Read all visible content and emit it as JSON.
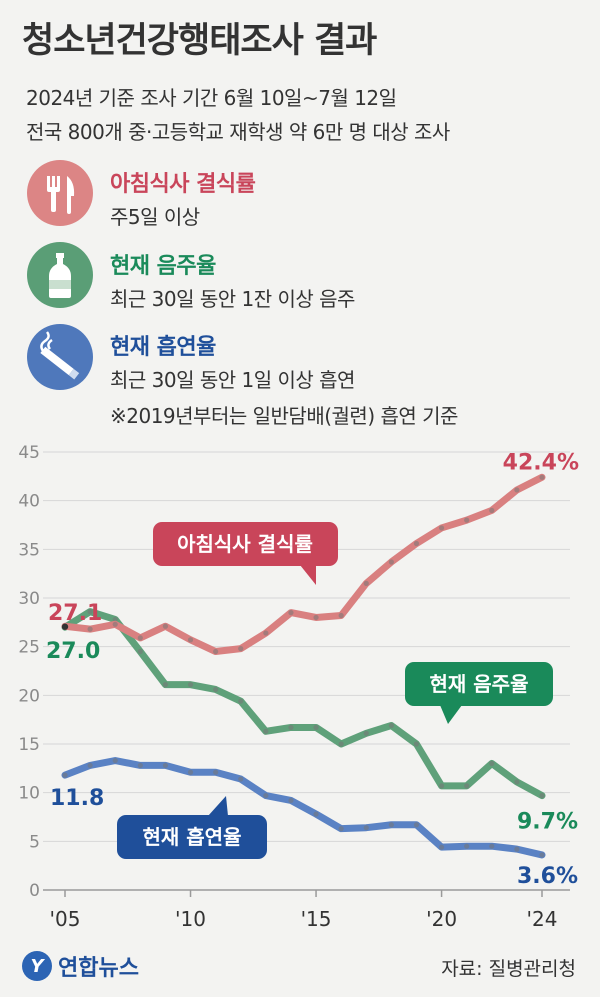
{
  "header": {
    "title": "청소년건강행태조사 결과",
    "line1": "2024년 기준 조사 기간 6월 10일~7월 12일",
    "line2": "전국 800개 중·고등학교 재학생 약 6만 명 대상 조사"
  },
  "legend": [
    {
      "name": "아침식사 결식률",
      "desc": "주5일 이상",
      "icon": "fork-knife-icon",
      "color": "#d35d6a",
      "icon_bg": "#dc8585"
    },
    {
      "name": "현재 음주율",
      "desc": "최근 30일 동안 1잔 이상 음주",
      "icon": "bottle-icon",
      "color": "#1a8a5a",
      "icon_bg": "#5a9e76"
    },
    {
      "name": "현재 흡연율",
      "desc": "최근 30일 동안 1일 이상 흡연",
      "note": "※2019년부터는 일반담배(궐련) 흡연 기준",
      "icon": "cigarette-icon",
      "color": "#1f4f9a",
      "icon_bg": "#4f78bb"
    }
  ],
  "chart_data": {
    "type": "line",
    "x": [
      2005,
      2006,
      2007,
      2008,
      2009,
      2010,
      2011,
      2012,
      2013,
      2014,
      2015,
      2016,
      2017,
      2018,
      2019,
      2020,
      2021,
      2022,
      2023,
      2024
    ],
    "xticks": [
      "'05",
      "'10",
      "'15",
      "'20",
      "'24"
    ],
    "xtick_values": [
      2005,
      2010,
      2015,
      2020,
      2024
    ],
    "ylim": [
      0,
      45
    ],
    "yticks": [
      "0",
      "5",
      "10",
      "15",
      "20",
      "25",
      "30",
      "35",
      "40",
      "45"
    ],
    "grid": true,
    "series": [
      {
        "name": "아침식사 결식률",
        "color": "#d98080",
        "label_color": "#c9455a",
        "values": [
          27.1,
          26.8,
          27.3,
          25.9,
          27.1,
          25.7,
          24.5,
          24.8,
          26.4,
          28.5,
          28.0,
          28.2,
          31.5,
          33.7,
          35.6,
          37.2,
          38.0,
          39.0,
          41.1,
          42.4
        ],
        "start_label": "27.1",
        "end_label": "42.4%"
      },
      {
        "name": "현재 음주율",
        "color": "#5fa17a",
        "label_color": "#1a8a5a",
        "values": [
          27.0,
          28.6,
          27.8,
          24.5,
          21.1,
          21.1,
          20.6,
          19.4,
          16.3,
          16.7,
          16.7,
          15.0,
          16.1,
          16.9,
          15.0,
          10.7,
          10.7,
          13.0,
          11.1,
          9.7
        ],
        "start_label": "27.0",
        "end_label": "9.7%"
      },
      {
        "name": "현재 흡연율",
        "color": "#5a82c4",
        "label_color": "#1f4f9a",
        "values": [
          11.8,
          12.8,
          13.3,
          12.8,
          12.8,
          12.1,
          12.1,
          11.4,
          9.7,
          9.2,
          7.8,
          6.3,
          6.4,
          6.7,
          6.7,
          4.4,
          4.5,
          4.5,
          4.2,
          3.6
        ],
        "start_label": "11.8",
        "end_label": "3.6%"
      }
    ],
    "callouts": [
      "아침식사 결식률",
      "현재 음주율",
      "현재 흡연율"
    ]
  },
  "footer": {
    "logo_mark": "Y",
    "logo": "연합뉴스",
    "source": "자료: 질병관리청"
  }
}
